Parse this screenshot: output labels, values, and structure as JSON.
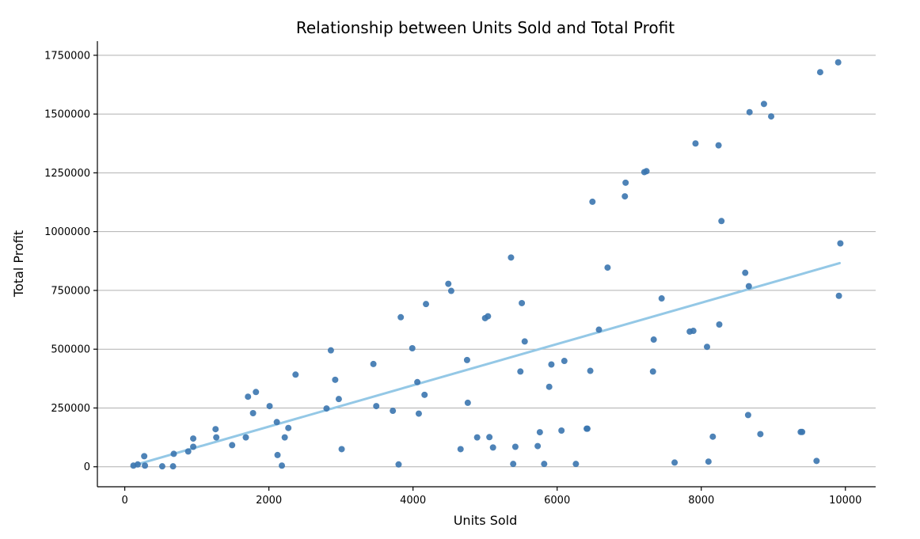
{
  "chart_data": {
    "type": "scatter",
    "title": "Relationship between Units Sold and Total Profit",
    "xlabel": "Units Sold",
    "ylabel": "Total Profit",
    "xlim": [
      -380,
      10420
    ],
    "ylim": [
      -85000,
      1810000
    ],
    "x_ticks": [
      0,
      2000,
      4000,
      6000,
      8000,
      10000
    ],
    "y_ticks": [
      0,
      250000,
      500000,
      750000,
      1000000,
      1250000,
      1500000,
      1750000
    ],
    "grid": "horizontal",
    "point_color": "#3b75af",
    "trend_color": "#94c8e6",
    "trend_line": {
      "x": [
        110,
        9920
      ],
      "y": [
        5000,
        866000
      ]
    },
    "points": [
      [
        120,
        5000
      ],
      [
        180,
        10000
      ],
      [
        270,
        45000
      ],
      [
        280,
        5000
      ],
      [
        520,
        2000
      ],
      [
        670,
        2000
      ],
      [
        680,
        55000
      ],
      [
        880,
        65000
      ],
      [
        950,
        85000
      ],
      [
        950,
        120000
      ],
      [
        1260,
        160000
      ],
      [
        1270,
        125000
      ],
      [
        1490,
        92000
      ],
      [
        1680,
        125000
      ],
      [
        1710,
        298000
      ],
      [
        1780,
        228000
      ],
      [
        1820,
        318000
      ],
      [
        2010,
        258000
      ],
      [
        2110,
        190000
      ],
      [
        2120,
        50000
      ],
      [
        2180,
        5000
      ],
      [
        2220,
        125000
      ],
      [
        2270,
        165000
      ],
      [
        2370,
        392000
      ],
      [
        2800,
        248000
      ],
      [
        2860,
        495000
      ],
      [
        2920,
        370000
      ],
      [
        2970,
        288000
      ],
      [
        3010,
        75000
      ],
      [
        3450,
        437000
      ],
      [
        3490,
        258000
      ],
      [
        3720,
        238000
      ],
      [
        3800,
        10000
      ],
      [
        3830,
        636000
      ],
      [
        3990,
        504000
      ],
      [
        4060,
        360000
      ],
      [
        4080,
        226000
      ],
      [
        4160,
        306000
      ],
      [
        4180,
        692000
      ],
      [
        4490,
        778000
      ],
      [
        4530,
        748000
      ],
      [
        4660,
        75000
      ],
      [
        4750,
        454000
      ],
      [
        4760,
        272000
      ],
      [
        4890,
        125000
      ],
      [
        5000,
        632000
      ],
      [
        5040,
        640000
      ],
      [
        5060,
        126000
      ],
      [
        5110,
        82000
      ],
      [
        5360,
        890000
      ],
      [
        5390,
        12000
      ],
      [
        5420,
        85000
      ],
      [
        5490,
        405000
      ],
      [
        5510,
        696000
      ],
      [
        5550,
        533000
      ],
      [
        5730,
        88000
      ],
      [
        5760,
        147000
      ],
      [
        5820,
        12000
      ],
      [
        5890,
        340000
      ],
      [
        5920,
        435000
      ],
      [
        6060,
        154000
      ],
      [
        6100,
        450000
      ],
      [
        6260,
        12000
      ],
      [
        6410,
        162000
      ],
      [
        6420,
        162000
      ],
      [
        6460,
        408000
      ],
      [
        6490,
        1127000
      ],
      [
        6580,
        583000
      ],
      [
        6700,
        847000
      ],
      [
        6940,
        1150000
      ],
      [
        6950,
        1208000
      ],
      [
        7210,
        1253000
      ],
      [
        7240,
        1257000
      ],
      [
        7330,
        405000
      ],
      [
        7340,
        541000
      ],
      [
        7450,
        716000
      ],
      [
        7630,
        18000
      ],
      [
        7840,
        575000
      ],
      [
        7890,
        578000
      ],
      [
        7920,
        1375000
      ],
      [
        8080,
        510000
      ],
      [
        8100,
        22000
      ],
      [
        8160,
        128000
      ],
      [
        8240,
        1367000
      ],
      [
        8250,
        605000
      ],
      [
        8280,
        1045000
      ],
      [
        8610,
        825000
      ],
      [
        8650,
        220000
      ],
      [
        8660,
        768000
      ],
      [
        8670,
        1508000
      ],
      [
        8820,
        139000
      ],
      [
        8870,
        1543000
      ],
      [
        8970,
        1490000
      ],
      [
        9380,
        148000
      ],
      [
        9400,
        148000
      ],
      [
        9600,
        25000
      ],
      [
        9650,
        1678000
      ],
      [
        9900,
        1720000
      ],
      [
        9910,
        727000
      ],
      [
        9930,
        950000
      ]
    ]
  }
}
